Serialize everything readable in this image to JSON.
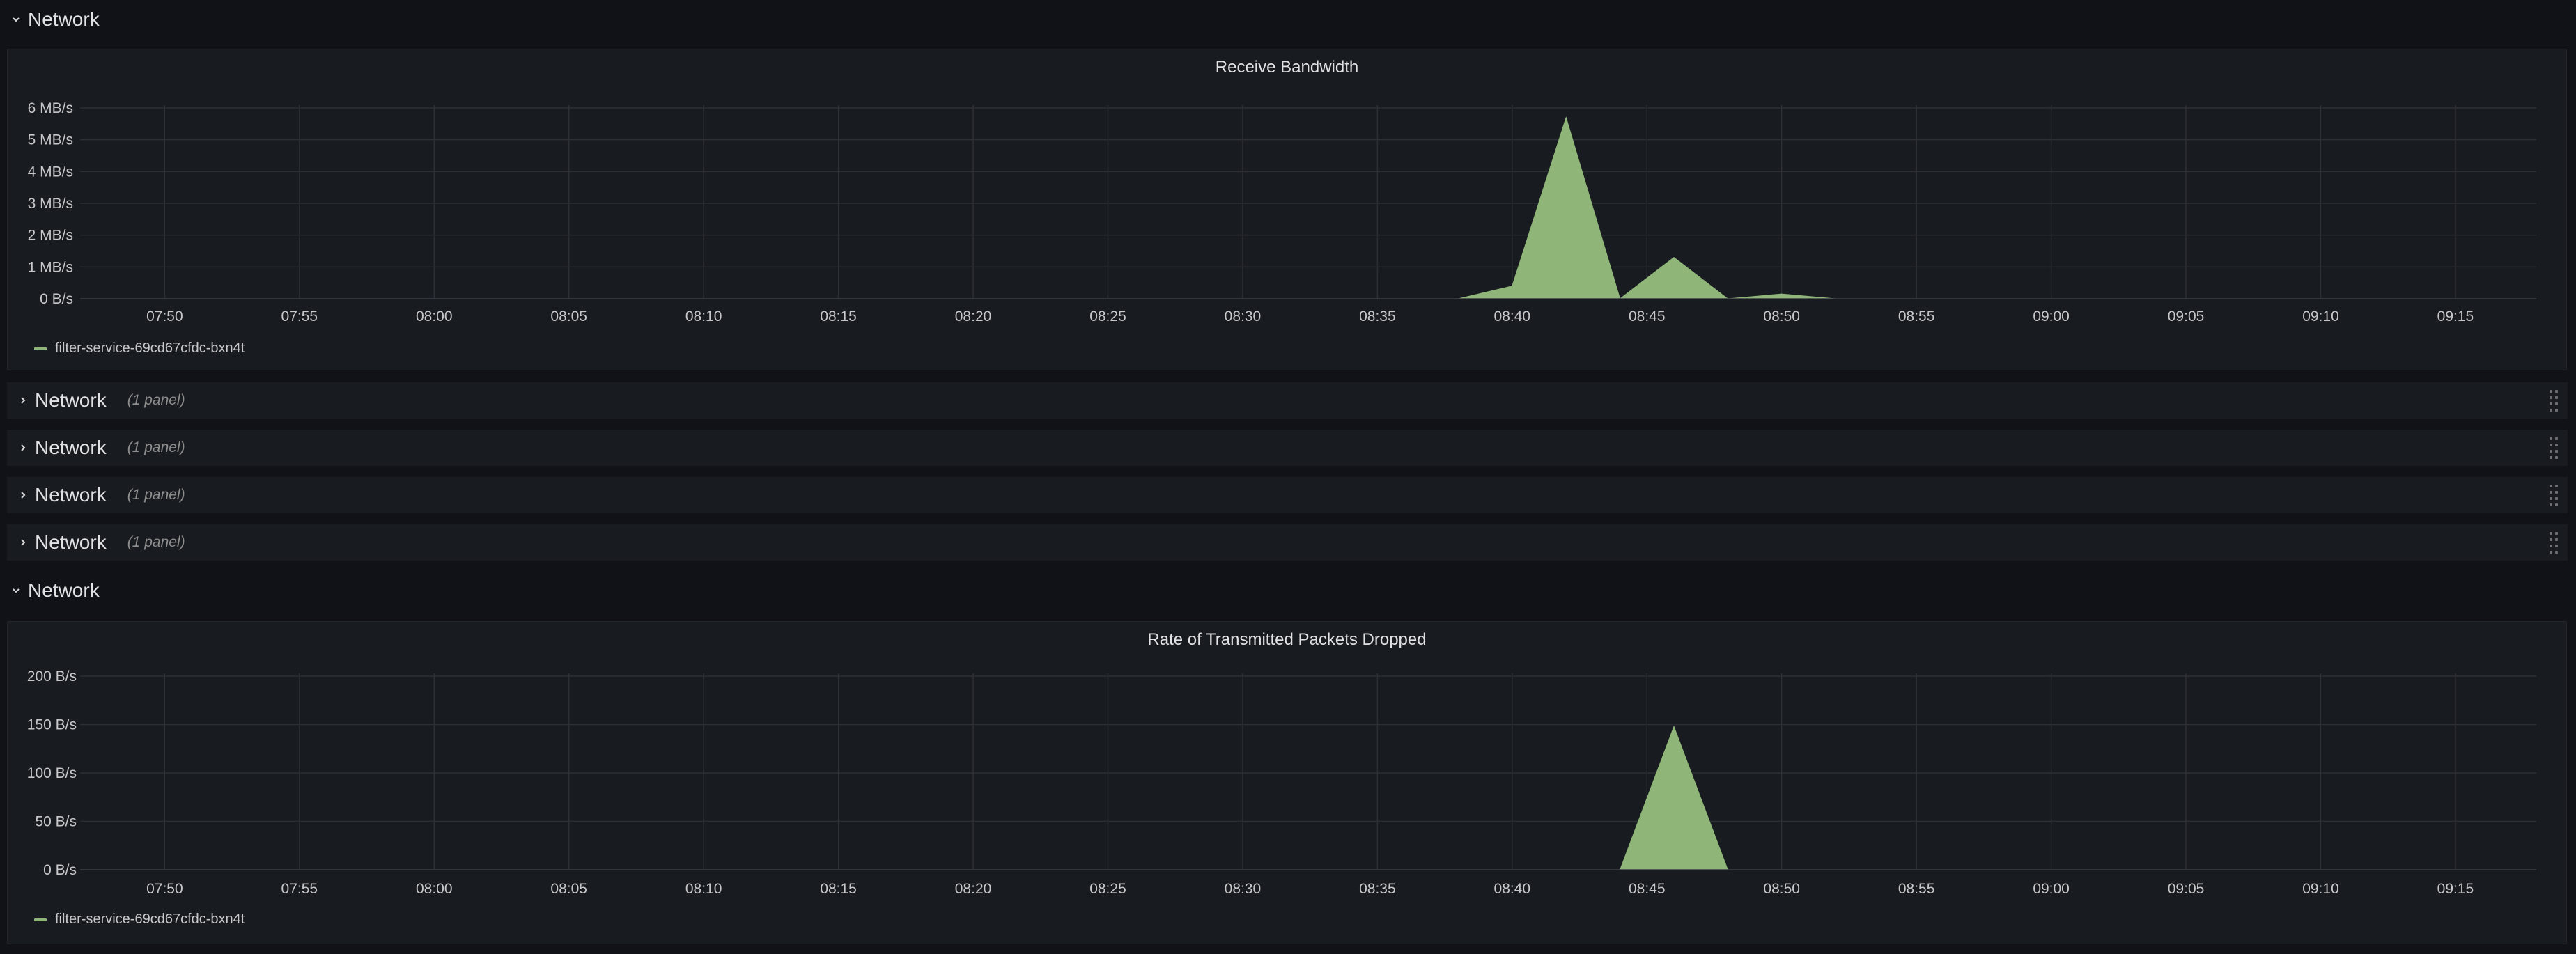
{
  "rows": [
    {
      "title": "Network",
      "collapsed": false
    },
    {
      "title": "Network",
      "collapsed": true,
      "count": "(1 panel)"
    },
    {
      "title": "Network",
      "collapsed": true,
      "count": "(1 panel)"
    },
    {
      "title": "Network",
      "collapsed": true,
      "count": "(1 panel)"
    },
    {
      "title": "Network",
      "collapsed": true,
      "count": "(1 panel)"
    },
    {
      "title": "Network",
      "collapsed": false
    }
  ],
  "colors": {
    "series": "#8fb578",
    "grid": "#2c2f35",
    "panel_bg": "#181b1f",
    "page_bg": "#111217"
  },
  "chart_data": [
    {
      "type": "area",
      "title": "Receive Bandwidth",
      "unit": "MB/s",
      "x_ticks": [
        "07:50",
        "07:55",
        "08:00",
        "08:05",
        "08:10",
        "08:15",
        "08:20",
        "08:25",
        "08:30",
        "08:35",
        "08:40",
        "08:45",
        "08:50",
        "08:55",
        "09:00",
        "09:05",
        "09:10",
        "09:15"
      ],
      "x_range": [
        "07:48",
        "09:18"
      ],
      "y_ticks": [
        "0 B/s",
        "1 MB/s",
        "2 MB/s",
        "3 MB/s",
        "4 MB/s",
        "5 MB/s",
        "6 MB/s"
      ],
      "ylim": [
        0,
        6
      ],
      "grid": true,
      "legend_position": "bottom-left",
      "series": [
        {
          "name": "filter-service-69cd67cfdc-bxn4t",
          "x": [
            "08:38",
            "08:40",
            "08:42",
            "08:44",
            "08:46",
            "08:48",
            "08:50",
            "08:52"
          ],
          "values": [
            0,
            0.4,
            5.7,
            0,
            1.3,
            0,
            0.15,
            0
          ]
        }
      ]
    },
    {
      "type": "area",
      "title": "Rate of Transmitted Packets Dropped",
      "unit": "B/s",
      "x_ticks": [
        "07:50",
        "07:55",
        "08:00",
        "08:05",
        "08:10",
        "08:15",
        "08:20",
        "08:25",
        "08:30",
        "08:35",
        "08:40",
        "08:45",
        "08:50",
        "08:55",
        "09:00",
        "09:05",
        "09:10",
        "09:15"
      ],
      "x_range": [
        "07:48",
        "09:18"
      ],
      "y_ticks": [
        "0 B/s",
        "50 B/s",
        "100 B/s",
        "150 B/s",
        "200 B/s"
      ],
      "ylim": [
        0,
        200
      ],
      "grid": true,
      "legend_position": "bottom-left",
      "series": [
        {
          "name": "filter-service-69cd67cfdc-bxn4t",
          "x": [
            "08:44",
            "08:46",
            "08:48"
          ],
          "values": [
            0,
            148,
            0
          ]
        }
      ]
    }
  ]
}
